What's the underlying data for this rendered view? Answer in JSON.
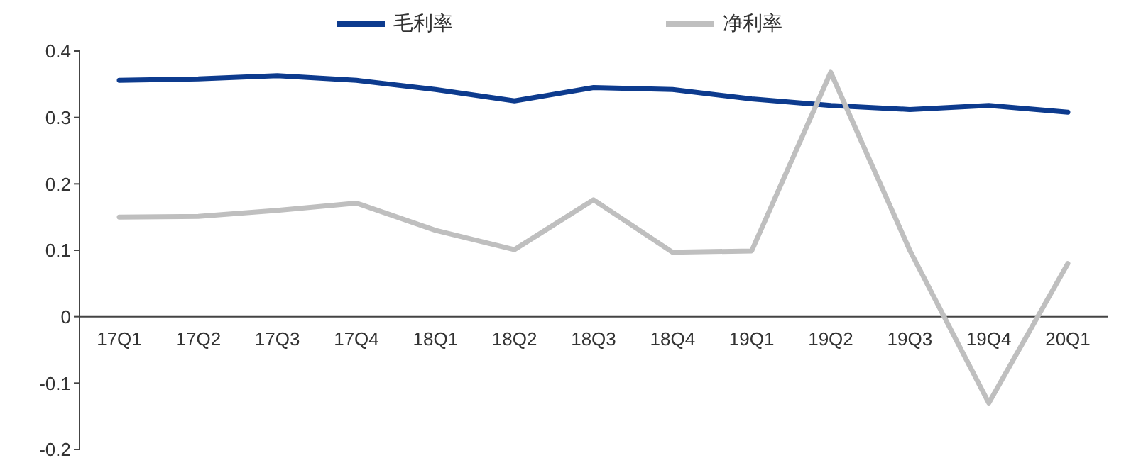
{
  "chart_data": {
    "type": "line",
    "categories": [
      "17Q1",
      "17Q2",
      "17Q3",
      "17Q4",
      "18Q1",
      "18Q2",
      "18Q3",
      "18Q4",
      "19Q1",
      "19Q2",
      "19Q3",
      "19Q4",
      "20Q1"
    ],
    "series": [
      {
        "name": "毛利率",
        "color": "#0d3b8e",
        "values": [
          0.356,
          0.358,
          0.363,
          0.356,
          0.342,
          0.325,
          0.345,
          0.342,
          0.328,
          0.318,
          0.312,
          0.318,
          0.308
        ]
      },
      {
        "name": "净利率",
        "color": "#bfbfbf",
        "values": [
          0.15,
          0.151,
          0.16,
          0.171,
          0.13,
          0.101,
          0.176,
          0.097,
          0.099,
          0.368,
          0.1,
          -0.13,
          0.08
        ]
      }
    ],
    "ylim": [
      -0.2,
      0.4
    ],
    "yticks": [
      -0.2,
      -0.1,
      0,
      0.1,
      0.2,
      0.3,
      0.4
    ],
    "grid": false,
    "legend": "top",
    "marker": "none",
    "line_style": "solid"
  }
}
